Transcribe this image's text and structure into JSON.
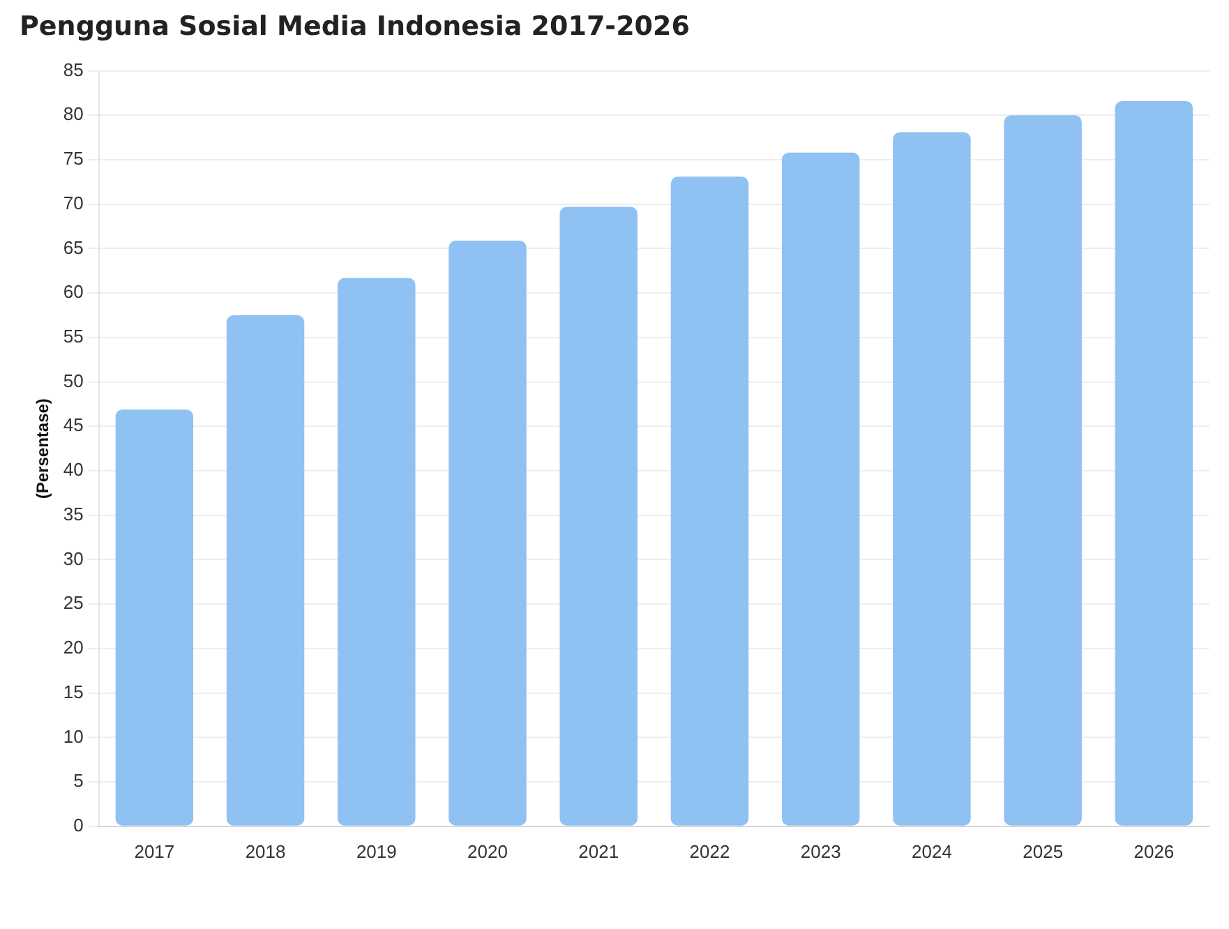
{
  "chart_data": {
    "type": "bar",
    "title": "Pengguna Sosial Media Indonesia 2017-2026",
    "ylabel": "(Persentase)",
    "categories": [
      "2017",
      "2018",
      "2019",
      "2020",
      "2021",
      "2022",
      "2023",
      "2024",
      "2025",
      "2026"
    ],
    "values": [
      46.9,
      57.5,
      61.7,
      65.9,
      69.7,
      73.1,
      75.8,
      78.1,
      80.0,
      81.6
    ],
    "color": "#90c1f3",
    "ylim": [
      0,
      85
    ],
    "yticks": [
      0,
      5,
      10,
      15,
      20,
      25,
      30,
      35,
      40,
      45,
      50,
      55,
      60,
      65,
      70,
      75,
      80,
      85
    ],
    "grid": "y"
  }
}
